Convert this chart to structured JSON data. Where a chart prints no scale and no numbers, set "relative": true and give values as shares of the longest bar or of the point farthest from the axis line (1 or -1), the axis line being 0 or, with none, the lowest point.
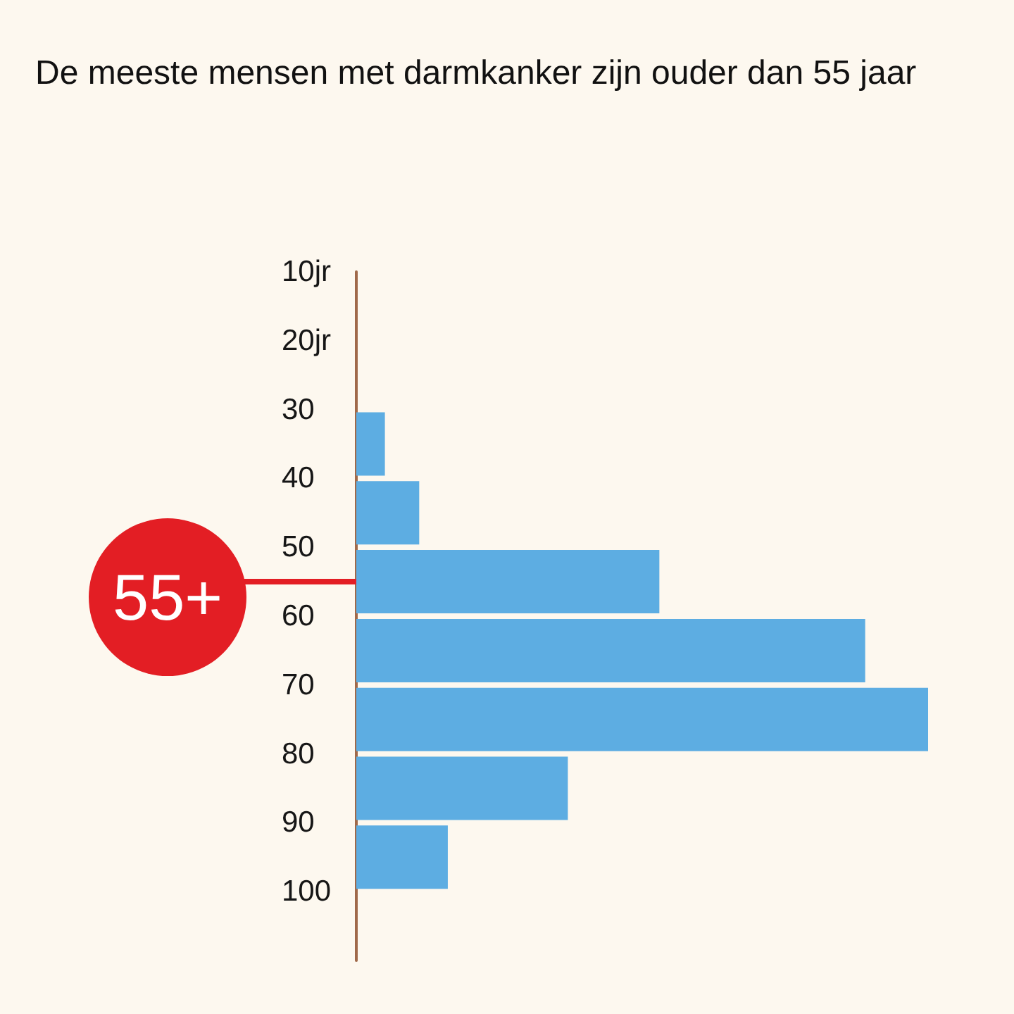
{
  "chart_data": {
    "type": "bar",
    "orientation": "horizontal",
    "title": "De meeste mensen met darmkanker zijn ouder dan 55 jaar",
    "categories": [
      "10jr",
      "20jr",
      "30",
      "40",
      "50",
      "60",
      "70",
      "80",
      "90",
      "100"
    ],
    "values": [
      0,
      0,
      0.05,
      0.11,
      0.53,
      0.89,
      1,
      0.37,
      0.16,
      null
    ],
    "relative": true,
    "color": "#5dade2",
    "ref_lines": [
      {
        "axis": "y",
        "value": "50",
        "label": "55+",
        "color": "#e31e24"
      }
    ]
  }
}
